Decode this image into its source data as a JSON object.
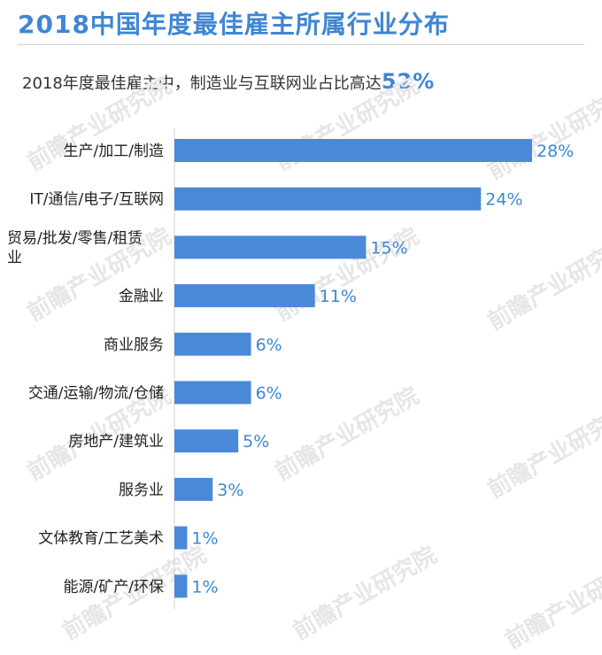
{
  "header": {
    "title": "2018中国年度最佳雇主所属行业分布",
    "subtitle_text": "2018年度最佳雇主中，制造业与互联网业占比高达",
    "subtitle_highlight": "52%"
  },
  "watermark": {
    "text": "前瞻产业研究院"
  },
  "colors": {
    "bar": "#4a89d8",
    "value_label": "#3f86d3",
    "category_label": "#222222",
    "axis": "#d0d0d0"
  },
  "chart_data": {
    "type": "bar",
    "orientation": "horizontal",
    "title": "2018中国年度最佳雇主所属行业分布",
    "subtitle": "2018年度最佳雇主中，制造业与互联网业占比高达52%",
    "categories": [
      [
        "生产/加工/制造"
      ],
      [
        "IT/通信/电子/互联网"
      ],
      [
        "贸易/批发/零售/租赁",
        "业"
      ],
      [
        "金融业"
      ],
      [
        "商业服务"
      ],
      [
        "交通/运输/物流/仓储"
      ],
      [
        "房地产/建筑业"
      ],
      [
        "服务业"
      ],
      [
        "文体教育/工艺美术"
      ],
      [
        "能源/矿产/环保"
      ]
    ],
    "values": [
      28,
      24,
      15,
      11,
      6,
      6,
      5,
      3,
      1,
      1
    ],
    "value_labels": [
      "28%",
      "24%",
      "15%",
      "11%",
      "6%",
      "6%",
      "5%",
      "3%",
      "1%",
      "1%"
    ],
    "unit": "%",
    "xlim": [
      0,
      28
    ],
    "xlabel": "",
    "ylabel": "",
    "grid": false,
    "legend": "none"
  }
}
